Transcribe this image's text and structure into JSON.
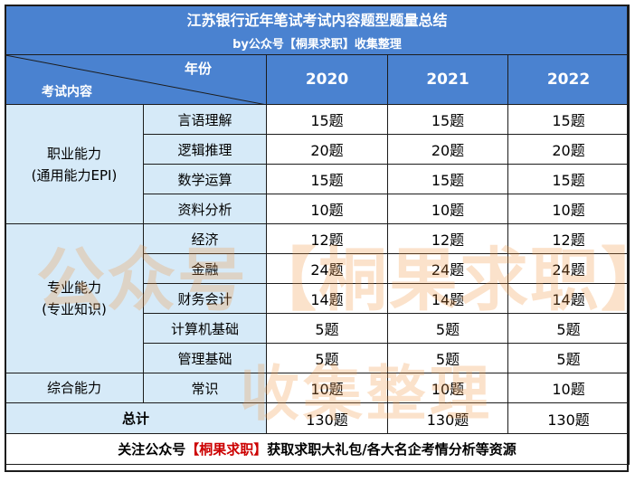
{
  "title": "江苏银行近年笔试考试内容题型题量总结",
  "subtitle": "by公众号【桐果求职】收集整理",
  "header": {
    "year_label": "年份",
    "content_label": "考试内容",
    "years": [
      "2020",
      "2021",
      "2022"
    ]
  },
  "sections": [
    {
      "category_line1": "职业能力",
      "category_line2": "(通用能力EPI)",
      "rows": [
        {
          "name": "言语理解",
          "values": [
            "15题",
            "15题",
            "15题"
          ]
        },
        {
          "name": "逻辑推理",
          "values": [
            "20题",
            "20题",
            "20题"
          ]
        },
        {
          "name": "数学运算",
          "values": [
            "15题",
            "15题",
            "15题"
          ]
        },
        {
          "name": "资料分析",
          "values": [
            "10题",
            "10题",
            "10题"
          ]
        }
      ]
    },
    {
      "category_line1": "专业能力",
      "category_line2": "(专业知识)",
      "rows": [
        {
          "name": "经济",
          "values": [
            "12题",
            "12题",
            "12题"
          ]
        },
        {
          "name": "金融",
          "values": [
            "24题",
            "24题",
            "24题"
          ]
        },
        {
          "name": "财务会计",
          "values": [
            "14题",
            "14题",
            "14题"
          ]
        },
        {
          "name": "计算机基础",
          "values": [
            "5题",
            "5题",
            "5题"
          ]
        },
        {
          "name": "管理基础",
          "values": [
            "5题",
            "5题",
            "5题"
          ]
        }
      ]
    },
    {
      "category_line1": "综合能力",
      "rows": [
        {
          "name": "常识",
          "values": [
            "10题",
            "10题",
            "10题"
          ]
        }
      ]
    }
  ],
  "total": {
    "label": "总计",
    "values": [
      "130题",
      "130题",
      "130题"
    ]
  },
  "footer": {
    "prefix": "关注公众号",
    "highlight": "【桐果求职】",
    "suffix": "获取求职大礼包/各大名企考情分析等资源"
  },
  "watermark": {
    "line1": "公众号【桐果求职】",
    "line2": "收集整理"
  },
  "colors": {
    "header_bg": "#4a82d0",
    "label_bg": "#d6eaf8",
    "highlight": "#cc0000"
  }
}
